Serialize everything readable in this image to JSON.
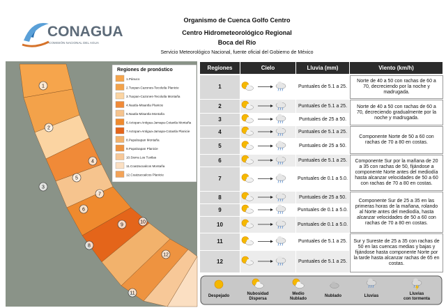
{
  "header": {
    "logo": "CONAGUA",
    "logo_subtitle": "COMISIÓN NACIONAL DEL AGUA",
    "title": "Organismo de Cuenca Golfo Centro",
    "subtitle": "Centro Hidrometeorológico Regional",
    "location": "Boca del Río",
    "source": "Servicio Meteorológico Nacional, fuente oficial del Gobierno de México"
  },
  "map": {
    "legend_title": "Regiones de pronóstico",
    "legend": [
      {
        "label": "1.Pánuco",
        "color": "#f6a54c"
      },
      {
        "label": "2.Tuxpan-Cazones-Tecolutla Planicie",
        "color": "#f3a24a"
      },
      {
        "label": "3.Tuxpan-Cazones-Tecolutla Montaña",
        "color": "#fbd4a2"
      },
      {
        "label": "4.Nautla-Misantla Planicie",
        "color": "#f08a38"
      },
      {
        "label": "5.Nautla-Misantla Montaña",
        "color": "#f6c48e"
      },
      {
        "label": "6.Actopan-Antigua-Jamapa-Cotaxtla Montaña",
        "color": "#ef8a2e"
      },
      {
        "label": "7.Actopan-Antigua-Jamapa-Cotaxtla Planicie",
        "color": "#e4651a"
      },
      {
        "label": "8.Papaloapan Montaña",
        "color": "#f2b26c"
      },
      {
        "label": "9.Papaloapan Planicie",
        "color": "#ee9340"
      },
      {
        "label": "10.Sierra Los Tuxtlas",
        "color": "#f7c898"
      },
      {
        "label": "11.Coatzacoalcos Montaña",
        "color": "#fbdfc2"
      },
      {
        "label": "12.Coatzacoalcos Planicie",
        "color": "#f3a358"
      }
    ],
    "region_labels": [
      "1",
      "2",
      "3",
      "4",
      "5",
      "6",
      "7",
      "8",
      "9",
      "10",
      "11",
      "12"
    ]
  },
  "table": {
    "headers": [
      "Regiones",
      "Cielo",
      "Lluvia (mm)",
      "Viento (km/h)"
    ],
    "rows": [
      {
        "region": "1",
        "lluvia": "Puntuales de 5.1 a 25."
      },
      {
        "region": "2",
        "lluvia": "Puntuales de 5.1 a 25."
      },
      {
        "region": "3",
        "lluvia": "Puntuales de 25 a 50."
      },
      {
        "region": "4",
        "lluvia": "Puntuales de 5.1 a 25."
      },
      {
        "region": "5",
        "lluvia": "Puntuales de 25 a 50."
      },
      {
        "region": "6",
        "lluvia": "Puntuales de 5.1 a 25."
      },
      {
        "region": "7",
        "lluvia": "Puntuales de 0.1 a 5.0."
      },
      {
        "region": "8",
        "lluvia": "Puntuales de 25 a 50."
      },
      {
        "region": "9",
        "lluvia": "Puntuales de 0.1 a 5.0."
      },
      {
        "region": "10",
        "lluvia": "Puntuales de 0.1 a 5.0."
      },
      {
        "region": "11",
        "lluvia": "Puntuales de 5.1 a 25."
      },
      {
        "region": "12",
        "lluvia": "Puntuales de 5.1 a 25."
      }
    ],
    "viento": [
      "Norte de 40 a 50 con rachas de 60 a 70, decreciendo por la noche y madrugada.",
      "Norte de 40 a 50 con rachas de 60 a 70, decreciendo gradualmente por la noche y madrugada.",
      "Componente Norte de 50 a 60 con rachas de 70 a 80 en costas.",
      "Componente Sur por la mañana de 20 a 35 con rachas de 50, fijándose a componente Norte antes del mediodía hasta alcanzar velocidades de 50 a 60 con rachas de 70 a 80 en costas.",
      "Componente Sur de 25 a 35 en las primeras horas de la mañana, rolando al Norte antes del mediodía, hasta alcanzar velocidades de 50 a 60 con rachas de 70 a 80 en costas.",
      "Sur y Sureste de 25 a 35 con rachas de 50 en las cuencas medias y bajas y fijándose hasta componente Norte por la tarde hasta alcanzar rachas de 65 en costas."
    ]
  },
  "sky_legend": [
    "Despejado",
    "Nubosidad Dispersa",
    "Medio Nublado",
    "Nublado",
    "Lluvias",
    "Lluvias con tormenta"
  ]
}
